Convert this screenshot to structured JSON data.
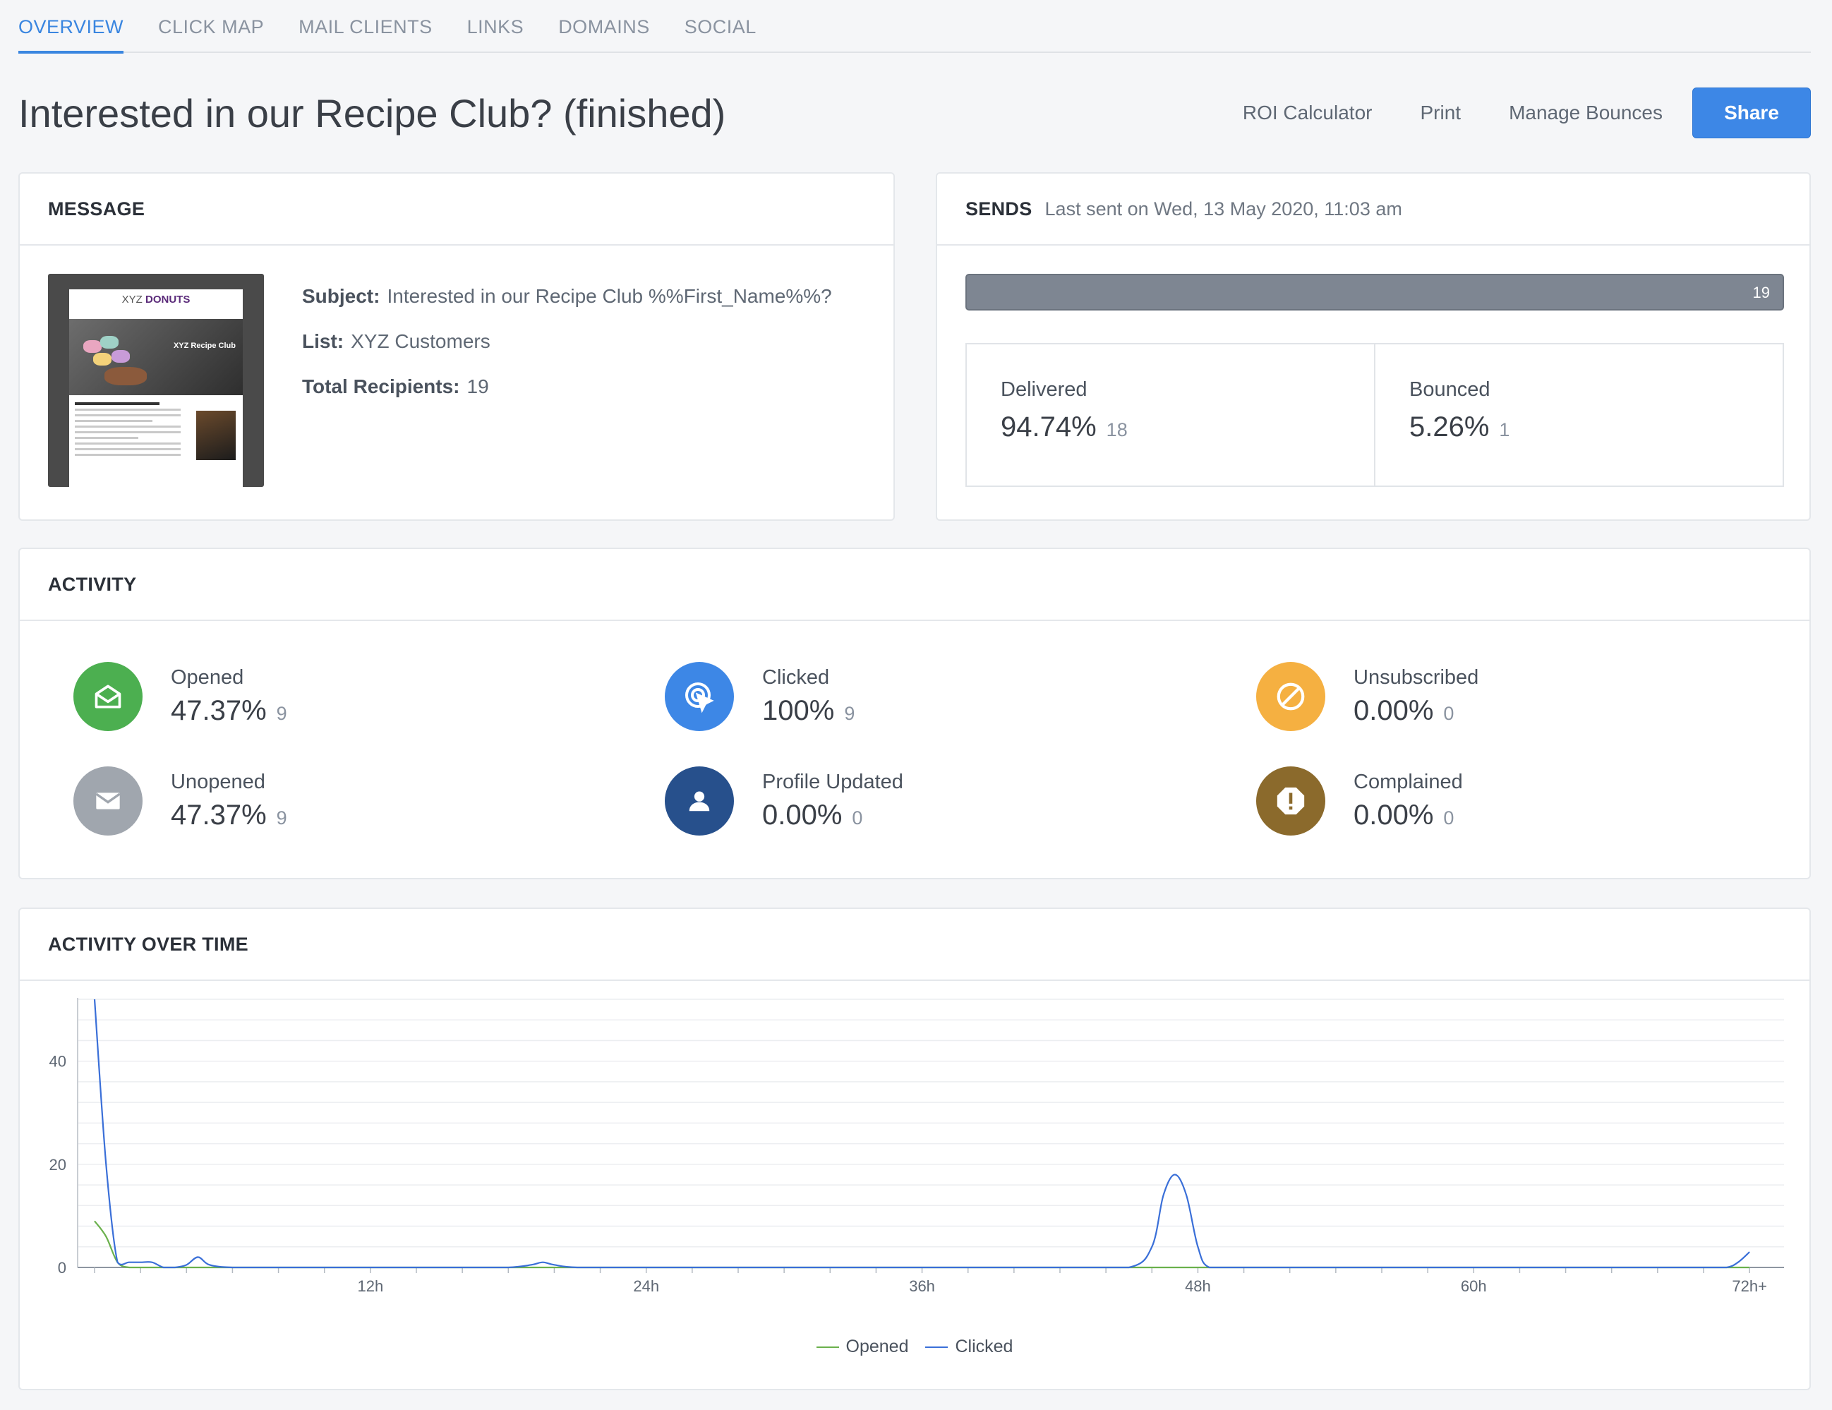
{
  "tabs": [
    "OVERVIEW",
    "CLICK MAP",
    "MAIL CLIENTS",
    "LINKS",
    "DOMAINS",
    "SOCIAL"
  ],
  "active_tab": "OVERVIEW",
  "title": "Interested in our Recipe Club? (finished)",
  "actions": {
    "roi": "ROI Calculator",
    "print": "Print",
    "bounces": "Manage Bounces",
    "share": "Share"
  },
  "message": {
    "heading": "MESSAGE",
    "subject_label": "Subject:",
    "subject": "Interested in our Recipe Club %%First_Name%%?",
    "list_label": "List:",
    "list": "XYZ Customers",
    "recipients_label": "Total Recipients:",
    "recipients": "19",
    "thumb_logo_a": "XYZ ",
    "thumb_logo_b": "DONUTS",
    "thumb_hero": "XYZ Recipe Club"
  },
  "sends": {
    "heading": "SENDS",
    "last_sent": "Last sent on Wed, 13 May 2020, 11:03 am",
    "total": "19",
    "delivered_label": "Delivered",
    "delivered_pct": "94.74%",
    "delivered_count": "18",
    "bounced_label": "Bounced",
    "bounced_pct": "5.26%",
    "bounced_count": "1"
  },
  "activity": {
    "heading": "ACTIVITY",
    "items": [
      {
        "label": "Opened",
        "pct": "47.37%",
        "count": "9",
        "color": "#4caf50",
        "icon": "envelope-open-icon"
      },
      {
        "label": "Clicked",
        "pct": "100%",
        "count": "9",
        "color": "#3d87e6",
        "icon": "pointer-click-icon"
      },
      {
        "label": "Unsubscribed",
        "pct": "0.00%",
        "count": "0",
        "color": "#f5b041",
        "icon": "ban-icon"
      },
      {
        "label": "Unopened",
        "pct": "47.37%",
        "count": "9",
        "color": "#a0a6ae",
        "icon": "envelope-icon"
      },
      {
        "label": "Profile Updated",
        "pct": "0.00%",
        "count": "0",
        "color": "#27508c",
        "icon": "user-icon"
      },
      {
        "label": "Complained",
        "pct": "0.00%",
        "count": "0",
        "color": "#8b6a2c",
        "icon": "alert-octagon-icon"
      }
    ]
  },
  "chart": {
    "heading": "ACTIVITY OVER TIME"
  },
  "chart_data": {
    "type": "line",
    "x": [
      0,
      0.5,
      1,
      1.5,
      2,
      2.5,
      3,
      3.5,
      4,
      4.5,
      5,
      6,
      8,
      10,
      12,
      14,
      16,
      18,
      19,
      19.5,
      20,
      21,
      24,
      30,
      36,
      42,
      45,
      46,
      46.5,
      47,
      47.5,
      48,
      48.5,
      50,
      54,
      60,
      66,
      70,
      71,
      71.5,
      72
    ],
    "x_tick_labels": [
      "12h",
      "24h",
      "36h",
      "48h",
      "60h",
      "72h+"
    ],
    "x_ticks": [
      12,
      24,
      36,
      48,
      60,
      72
    ],
    "ylim": [
      0,
      52
    ],
    "y_ticks": [
      0,
      20,
      40
    ],
    "series": [
      {
        "name": "Opened",
        "color": "#6ab04c",
        "values": [
          9,
          6,
          1,
          0,
          0,
          0,
          0,
          0,
          0,
          0,
          0,
          0,
          0,
          0,
          0,
          0,
          0,
          0,
          0,
          0,
          0,
          0,
          0,
          0,
          0,
          0,
          0,
          0,
          0,
          0,
          0,
          0,
          0,
          0,
          0,
          0,
          0,
          0,
          0,
          0,
          0
        ]
      },
      {
        "name": "Clicked",
        "color": "#3a6fd8",
        "values": [
          52,
          20,
          1,
          1,
          1,
          1,
          0,
          0,
          0.5,
          2,
          0.5,
          0,
          0,
          0,
          0,
          0,
          0,
          0,
          0.5,
          1,
          0.5,
          0,
          0,
          0,
          0,
          0,
          0,
          4,
          14,
          18,
          14,
          4,
          0,
          0,
          0,
          0,
          0,
          0,
          0,
          1,
          3
        ]
      }
    ],
    "legend": "bottom-center",
    "grid": true
  }
}
